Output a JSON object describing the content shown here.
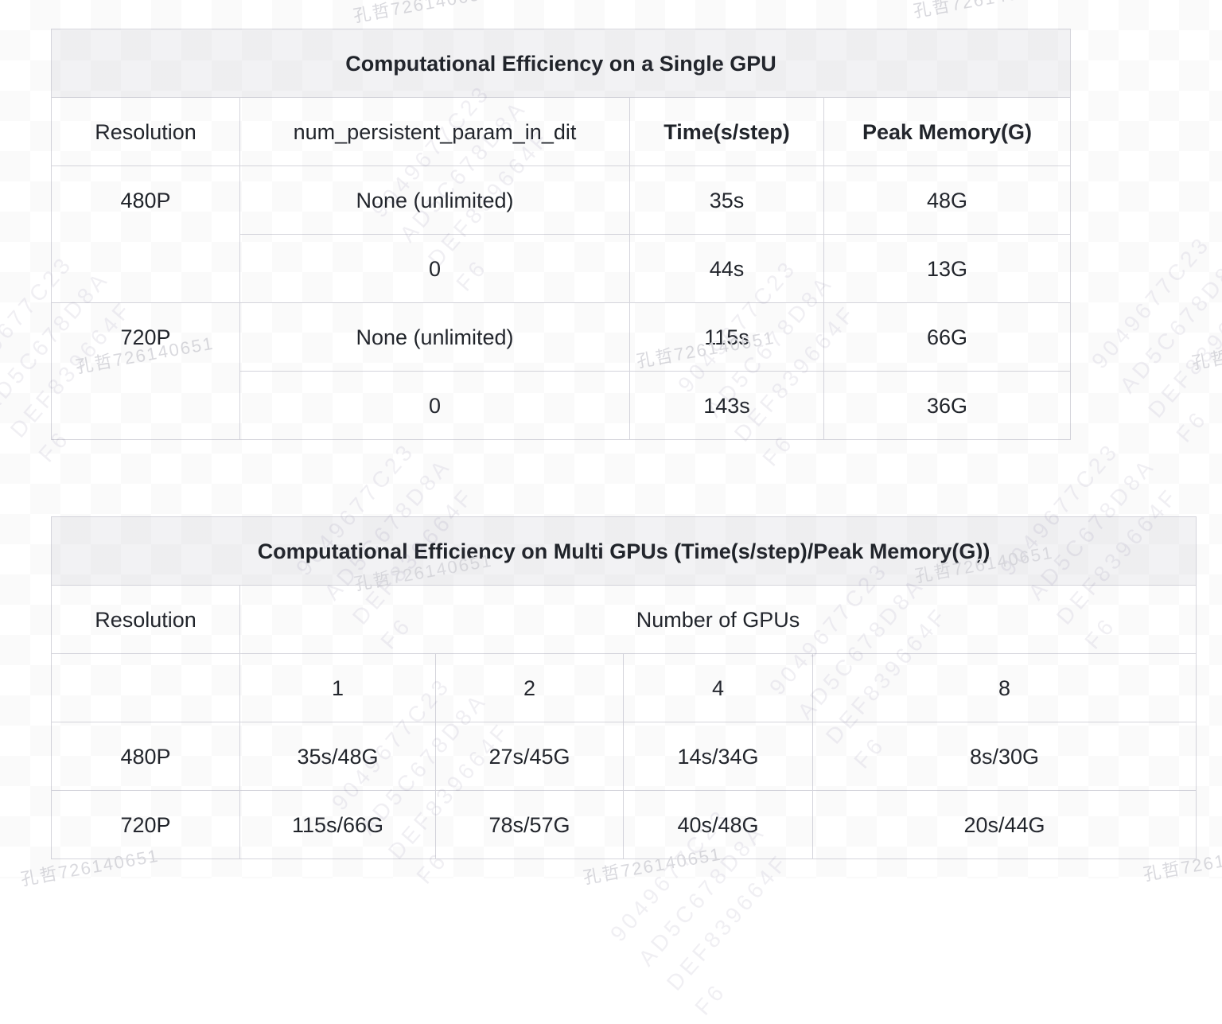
{
  "watermark": {
    "owner_text": "孔哲726140651",
    "hash_lines": [
      "9049677C23",
      "AD5C678D8A",
      "DEF839664F",
      "F6"
    ]
  },
  "table_single_gpu": {
    "title": "Computational Efficiency on a Single GPU",
    "header": {
      "resolution": "Resolution",
      "num_persistent": "num_persistent_param_in_dit",
      "time": "Time(s/step)",
      "peak_memory": "Peak Memory(G)"
    },
    "groups": [
      {
        "resolution": "480P",
        "rows": [
          {
            "num_persistent": "None (unlimited)",
            "time": "35s",
            "peak_memory": "48G"
          },
          {
            "num_persistent": "0",
            "time": "44s",
            "peak_memory": "13G"
          }
        ]
      },
      {
        "resolution": "720P",
        "rows": [
          {
            "num_persistent": "None (unlimited)",
            "time": "115s",
            "peak_memory": "66G"
          },
          {
            "num_persistent": "0",
            "time": "143s",
            "peak_memory": "36G"
          }
        ]
      }
    ]
  },
  "table_multi_gpu": {
    "title": "Computational Efficiency on Multi GPUs (Time(s/step)/Peak Memory(G))",
    "header": {
      "resolution": "Resolution",
      "group": "Number of GPUs"
    },
    "gpu_counts": [
      "1",
      "2",
      "4",
      "8"
    ],
    "rows": [
      {
        "resolution": "480P",
        "values": [
          "35s/48G",
          "27s/45G",
          "14s/34G",
          "8s/30G"
        ]
      },
      {
        "resolution": "720P",
        "values": [
          "115s/66G",
          "78s/57G",
          "40s/48G",
          "20s/44G"
        ]
      }
    ]
  },
  "colors": {
    "table_border": "#d5d5dc",
    "title_row_bg": "#f2f2f4",
    "text": "#1f2329",
    "owner_watermark": "#d9d9de"
  }
}
